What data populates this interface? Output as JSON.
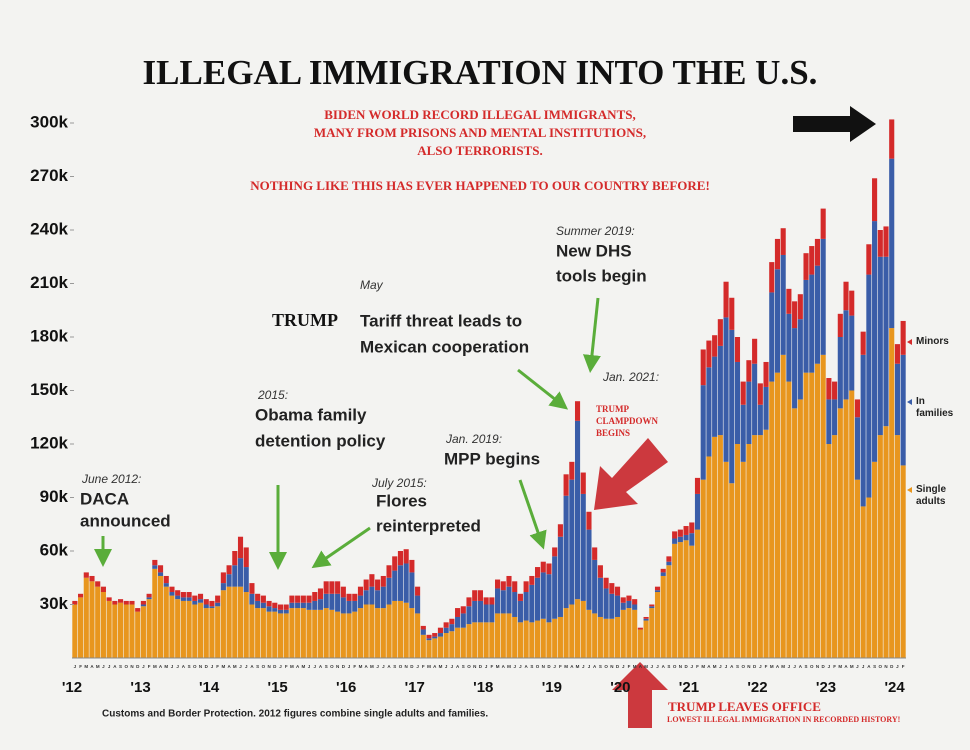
{
  "chart_data": {
    "type": "stacked-bar",
    "title": "ILLEGAL IMMIGRATION INTO THE U.S.",
    "subtitle": [
      "BIDEN WORLD RECORD ILLEGAL IMMIGRANTS,",
      "MANY FROM PRISONS AND MENTAL INSTITUTIONS,",
      "ALSO TERRORISTS.",
      "NOTHING LIKE THIS HAS EVER HAPPENED TO OUR COUNTRY BEFORE!"
    ],
    "source": "Customs and Border Protection. 2012 figures combine single adults and families.",
    "categories": [
      "J",
      "F",
      "M",
      "A",
      "M",
      "J",
      "J",
      "A",
      "S",
      "O",
      "N",
      "D",
      "J",
      "F",
      "M",
      "A",
      "M",
      "J",
      "J",
      "A",
      "S",
      "O",
      "N",
      "D",
      "J",
      "F",
      "M",
      "A",
      "M",
      "J",
      "J",
      "A",
      "S",
      "O",
      "N",
      "D",
      "J",
      "F",
      "M",
      "A",
      "M",
      "J",
      "J",
      "A",
      "S",
      "O",
      "N",
      "D",
      "J",
      "F",
      "M",
      "A",
      "M",
      "J",
      "J",
      "A",
      "S",
      "O",
      "N",
      "D",
      "J",
      "F",
      "M",
      "A",
      "M",
      "J",
      "J",
      "A",
      "S",
      "O",
      "N",
      "D",
      "J",
      "F",
      "M",
      "A",
      "M",
      "J",
      "J",
      "A",
      "S",
      "O",
      "N",
      "D",
      "J",
      "F",
      "M",
      "A",
      "M",
      "J",
      "J",
      "A",
      "S",
      "O",
      "N",
      "D",
      "J",
      "F",
      "M",
      "A",
      "M",
      "J",
      "J",
      "A",
      "S",
      "O",
      "N",
      "D",
      "J",
      "F",
      "M",
      "A",
      "M",
      "J",
      "J",
      "A",
      "S",
      "O",
      "N",
      "D",
      "J",
      "F",
      "M",
      "A",
      "M",
      "J",
      "J",
      "A",
      "S",
      "O",
      "N",
      "D",
      "J",
      "F",
      "M",
      "A",
      "M",
      "J",
      "J",
      "A",
      "S",
      "O",
      "N",
      "D",
      "J",
      "F"
    ],
    "year_labels": [
      "'12",
      "'13",
      "'14",
      "'15",
      "'16",
      "'17",
      "'18",
      "'19",
      "'20",
      "'21",
      "'22",
      "'23",
      "'24"
    ],
    "series": [
      {
        "name": "Single adults",
        "color": "#e8961e",
        "values": [
          30,
          34,
          45,
          43,
          40,
          37,
          32,
          30,
          31,
          30,
          30,
          26,
          29,
          33,
          50,
          46,
          40,
          35,
          33,
          32,
          32,
          30,
          31,
          28,
          28,
          29,
          38,
          40,
          40,
          40,
          37,
          30,
          28,
          28,
          26,
          26,
          25,
          25,
          28,
          28,
          28,
          27,
          27,
          27,
          28,
          27,
          26,
          25,
          25,
          26,
          28,
          30,
          30,
          28,
          28,
          30,
          32,
          32,
          31,
          28,
          25,
          13,
          10,
          11,
          12,
          14,
          15,
          17,
          17,
          19,
          20,
          20,
          20,
          20,
          25,
          25,
          25,
          23,
          20,
          21,
          20,
          21,
          22,
          20,
          22,
          23,
          28,
          30,
          33,
          32,
          27,
          25,
          23,
          22,
          22,
          23,
          27,
          28,
          27,
          16,
          21,
          28,
          37,
          46,
          52,
          64,
          65,
          66,
          63,
          72,
          100,
          113,
          124,
          125,
          110,
          98,
          120,
          110,
          120,
          125,
          125,
          128,
          155,
          160,
          170,
          155,
          140,
          145,
          160,
          160,
          165,
          170,
          120,
          125,
          140,
          145,
          150,
          100,
          85,
          90,
          110,
          125,
          130,
          185,
          125,
          108
        ]
      },
      {
        "name": "In families",
        "color": "#3a5da8",
        "values": [
          0,
          0,
          0,
          0,
          0,
          0,
          0,
          0,
          0,
          0,
          0,
          0,
          1,
          1,
          2,
          2,
          2,
          2,
          2,
          2,
          2,
          2,
          2,
          2,
          1,
          2,
          4,
          7,
          12,
          16,
          14,
          6,
          4,
          3,
          3,
          2,
          2,
          2,
          3,
          3,
          3,
          4,
          5,
          6,
          8,
          9,
          10,
          9,
          7,
          6,
          7,
          8,
          10,
          10,
          12,
          15,
          17,
          20,
          22,
          20,
          10,
          3,
          1,
          1,
          2,
          3,
          4,
          6,
          8,
          10,
          12,
          12,
          10,
          10,
          14,
          13,
          15,
          14,
          12,
          16,
          21,
          24,
          26,
          27,
          35,
          45,
          63,
          70,
          100,
          60,
          45,
          30,
          22,
          17,
          14,
          12,
          4,
          4,
          3,
          0,
          1,
          1,
          1,
          2,
          2,
          3,
          3,
          3,
          7,
          20,
          53,
          50,
          45,
          50,
          81,
          86,
          46,
          32,
          35,
          40,
          17,
          24,
          50,
          58,
          56,
          38,
          45,
          45,
          52,
          55,
          55,
          65,
          25,
          20,
          40,
          50,
          42,
          35,
          85,
          125,
          135,
          100,
          95,
          95,
          40,
          62
        ]
      },
      {
        "name": "Minors",
        "color": "#d42a2a",
        "values": [
          2,
          2,
          3,
          3,
          3,
          3,
          2,
          2,
          2,
          2,
          2,
          2,
          2,
          2,
          3,
          4,
          4,
          3,
          3,
          3,
          3,
          3,
          3,
          3,
          3,
          4,
          6,
          5,
          8,
          12,
          11,
          6,
          4,
          4,
          3,
          3,
          3,
          3,
          4,
          4,
          4,
          4,
          5,
          6,
          7,
          7,
          7,
          6,
          4,
          4,
          5,
          6,
          7,
          6,
          6,
          7,
          8,
          8,
          8,
          7,
          5,
          2,
          2,
          2,
          3,
          3,
          3,
          5,
          4,
          5,
          6,
          6,
          4,
          4,
          5,
          5,
          6,
          6,
          4,
          6,
          5,
          6,
          6,
          6,
          5,
          7,
          12,
          10,
          11,
          12,
          10,
          7,
          7,
          6,
          6,
          5,
          3,
          3,
          3,
          1,
          1,
          1,
          2,
          2,
          3,
          4,
          4,
          5,
          6,
          9,
          20,
          15,
          12,
          15,
          20,
          18,
          14,
          13,
          12,
          14,
          12,
          14,
          17,
          17,
          15,
          14,
          15,
          14,
          15,
          16,
          15,
          17,
          12,
          10,
          13,
          16,
          14,
          10,
          13,
          17,
          24,
          15,
          17,
          22,
          11,
          19
        ]
      }
    ],
    "ylim": [
      0,
      330
    ],
    "yticks": [
      {
        "value": 30,
        "label": "30k"
      },
      {
        "value": 60,
        "label": "60k"
      },
      {
        "value": 90,
        "label": "90k"
      },
      {
        "value": 120,
        "label": "120k"
      },
      {
        "value": 150,
        "label": "150k"
      },
      {
        "value": 180,
        "label": "180k"
      },
      {
        "value": 210,
        "label": "210k"
      },
      {
        "value": 240,
        "label": "240k"
      },
      {
        "value": 270,
        "label": "270k"
      },
      {
        "value": 300,
        "label": "300k"
      }
    ],
    "annotations": [
      {
        "date": "June 2012:",
        "lines": [
          "DACA",
          "announced"
        ]
      },
      {
        "date": "2015:",
        "lines": [
          "Obama family",
          "detention policy"
        ]
      },
      {
        "date": "July 2015:",
        "lines": [
          "Flores",
          "reinterpreted"
        ]
      },
      {
        "date": "May",
        "lead": "TRUMP",
        "lines": [
          "Tariff threat leads to",
          "Mexican cooperation"
        ]
      },
      {
        "date": "Summer 2019:",
        "lines": [
          "New DHS",
          "tools begin"
        ]
      },
      {
        "date": "Jan. 2019:",
        "lines": [
          "MPP begins"
        ]
      },
      {
        "date": "Jan. 2021:"
      }
    ],
    "clampdown": [
      "TRUMP",
      "CLAMPDOWN",
      "BEGINS"
    ],
    "leaves_office": [
      "TRUMP LEAVES OFFICE",
      "LOWEST ILLEGAL IMMIGRATION IN RECORDED HISTORY!"
    ]
  }
}
